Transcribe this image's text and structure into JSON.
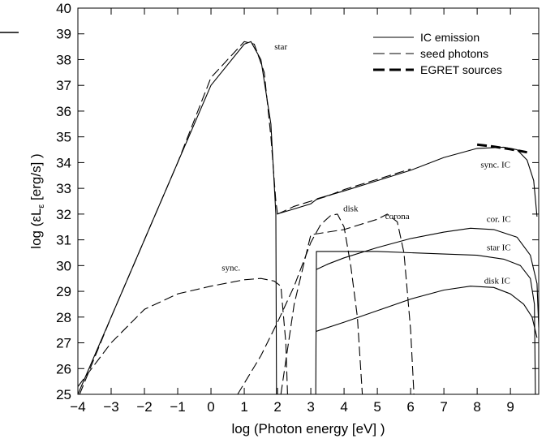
{
  "chart_data": {
    "type": "line",
    "xlabel": "log (Photon energy [eV] )",
    "ylabel": "log (εL",
    "ylabel_sub": "ε",
    "ylabel_tail": " [erg/s] )",
    "xlim": [
      -4,
      9.85
    ],
    "ylim": [
      25,
      40
    ],
    "x_ticks": [
      -4,
      -3,
      -2,
      -1,
      0,
      1,
      2,
      3,
      4,
      5,
      6,
      7,
      8,
      9
    ],
    "y_ticks": [
      25,
      26,
      27,
      28,
      29,
      30,
      31,
      32,
      33,
      34,
      35,
      36,
      37,
      38,
      39,
      40
    ],
    "legend": {
      "placement": "top-right",
      "entries": [
        {
          "label": "IC emission",
          "style": "solid"
        },
        {
          "label": "seed photons",
          "style": "dashed"
        },
        {
          "label": "EGRET sources",
          "style": "thick-dashed"
        }
      ]
    },
    "annotations": [
      {
        "text": "star",
        "x": 2.1,
        "y": 38.4
      },
      {
        "text": "disk",
        "x": 4.2,
        "y": 32.1
      },
      {
        "text": "corona",
        "x": 5.6,
        "y": 31.8
      },
      {
        "text": "sync. IC",
        "x": 8.55,
        "y": 33.8
      },
      {
        "text": "cor. IC",
        "x": 8.65,
        "y": 31.7
      },
      {
        "text": "star IC",
        "x": 8.65,
        "y": 30.6
      },
      {
        "text": "disk IC",
        "x": 8.6,
        "y": 29.3
      },
      {
        "text": "sync.",
        "x": 0.6,
        "y": 29.8
      }
    ],
    "series": [
      {
        "style": "solid",
        "points": [
          [
            -4,
            25
          ],
          [
            -3,
            28
          ],
          [
            -2,
            31
          ],
          [
            -1,
            34
          ],
          [
            0,
            37
          ],
          [
            1,
            38.6
          ],
          [
            1.2,
            38.7
          ],
          [
            1.5,
            38
          ],
          [
            1.8,
            35.5
          ],
          [
            1.95,
            32
          ],
          [
            1.97,
            25
          ]
        ]
      },
      {
        "style": "dashed",
        "points": [
          [
            -3.95,
            25
          ],
          [
            -3,
            28
          ],
          [
            -2,
            31
          ],
          [
            -1,
            34
          ],
          [
            0,
            37.3
          ],
          [
            1,
            38.7
          ],
          [
            1.3,
            38.6
          ],
          [
            1.6,
            37.5
          ],
          [
            1.8,
            35
          ],
          [
            1.95,
            32.5
          ],
          [
            2,
            32
          ]
        ]
      },
      {
        "style": "solid",
        "points": [
          [
            1.98,
            32
          ],
          [
            2.5,
            32.2
          ],
          [
            3,
            32.4
          ],
          [
            3.2,
            32.6
          ],
          [
            4,
            32.9
          ],
          [
            5,
            33.3
          ],
          [
            6,
            33.7
          ],
          [
            7,
            34.2
          ],
          [
            8,
            34.55
          ],
          [
            8.8,
            34.6
          ],
          [
            9.2,
            34.5
          ],
          [
            9.5,
            34.1
          ],
          [
            9.7,
            33.3
          ],
          [
            9.8,
            31.9
          ]
        ]
      },
      {
        "style": "dashed",
        "points": [
          [
            2,
            32
          ],
          [
            2.5,
            32.3
          ],
          [
            3,
            32.5
          ],
          [
            3.5,
            32.7
          ],
          [
            4,
            32.95
          ],
          [
            5,
            33.35
          ],
          [
            6,
            33.75
          ]
        ]
      },
      {
        "style": "dashed",
        "points": [
          [
            -4,
            25.3
          ],
          [
            -3,
            27
          ],
          [
            -2,
            28.3
          ],
          [
            -1,
            28.9
          ],
          [
            0,
            29.2
          ],
          [
            1,
            29.45
          ],
          [
            1.5,
            29.5
          ],
          [
            1.9,
            29.4
          ],
          [
            2.1,
            29.2
          ],
          [
            2.25,
            27
          ],
          [
            2.3,
            25
          ]
        ]
      },
      {
        "style": "dashed",
        "points": [
          [
            0.8,
            25
          ],
          [
            1.5,
            26.5
          ],
          [
            2,
            27.8
          ],
          [
            2.5,
            29.2
          ],
          [
            3,
            30.9
          ],
          [
            3.3,
            31.6
          ],
          [
            3.6,
            31.95
          ],
          [
            3.8,
            32
          ],
          [
            4,
            31.5
          ],
          [
            4.2,
            30
          ],
          [
            4.4,
            28
          ],
          [
            4.55,
            25
          ]
        ]
      },
      {
        "style": "dashed",
        "points": [
          [
            2.1,
            25
          ],
          [
            2.5,
            28.5
          ],
          [
            3,
            31.2
          ],
          [
            4,
            31.4
          ],
          [
            5,
            31.8
          ],
          [
            5.3,
            32
          ],
          [
            5.6,
            31.7
          ],
          [
            5.8,
            30.5
          ],
          [
            6,
            27.5
          ],
          [
            6.1,
            25
          ]
        ]
      },
      {
        "style": "solid",
        "points": [
          [
            3.15,
            25
          ],
          [
            3.17,
            30.55
          ],
          [
            4,
            30.55
          ],
          [
            5,
            30.55
          ],
          [
            6,
            30.5
          ],
          [
            7,
            30.45
          ],
          [
            8,
            30.4
          ],
          [
            8.8,
            30.25
          ],
          [
            9.3,
            30
          ],
          [
            9.6,
            29.5
          ],
          [
            9.72,
            28.5
          ],
          [
            9.75,
            25
          ]
        ]
      },
      {
        "style": "solid",
        "points": [
          [
            3.17,
            29.85
          ],
          [
            3.5,
            30.05
          ],
          [
            4,
            30.3
          ],
          [
            5,
            30.7
          ],
          [
            6,
            31.05
          ],
          [
            7,
            31.3
          ],
          [
            7.8,
            31.45
          ],
          [
            8.5,
            31.4
          ],
          [
            9.2,
            31.1
          ],
          [
            9.6,
            30.4
          ],
          [
            9.8,
            29.3
          ],
          [
            9.85,
            27.6
          ]
        ]
      },
      {
        "style": "solid",
        "points": [
          [
            3.17,
            27.45
          ],
          [
            4,
            27.8
          ],
          [
            5,
            28.25
          ],
          [
            6,
            28.7
          ],
          [
            7,
            29.05
          ],
          [
            7.8,
            29.2
          ],
          [
            8.5,
            29.15
          ],
          [
            9,
            28.9
          ],
          [
            9.4,
            28.5
          ],
          [
            9.65,
            28
          ],
          [
            9.8,
            27.2
          ]
        ]
      },
      {
        "style": "thick-dashed",
        "points": [
          [
            8,
            34.7
          ],
          [
            8.5,
            34.62
          ],
          [
            9,
            34.52
          ],
          [
            9.5,
            34.4
          ]
        ]
      }
    ]
  }
}
